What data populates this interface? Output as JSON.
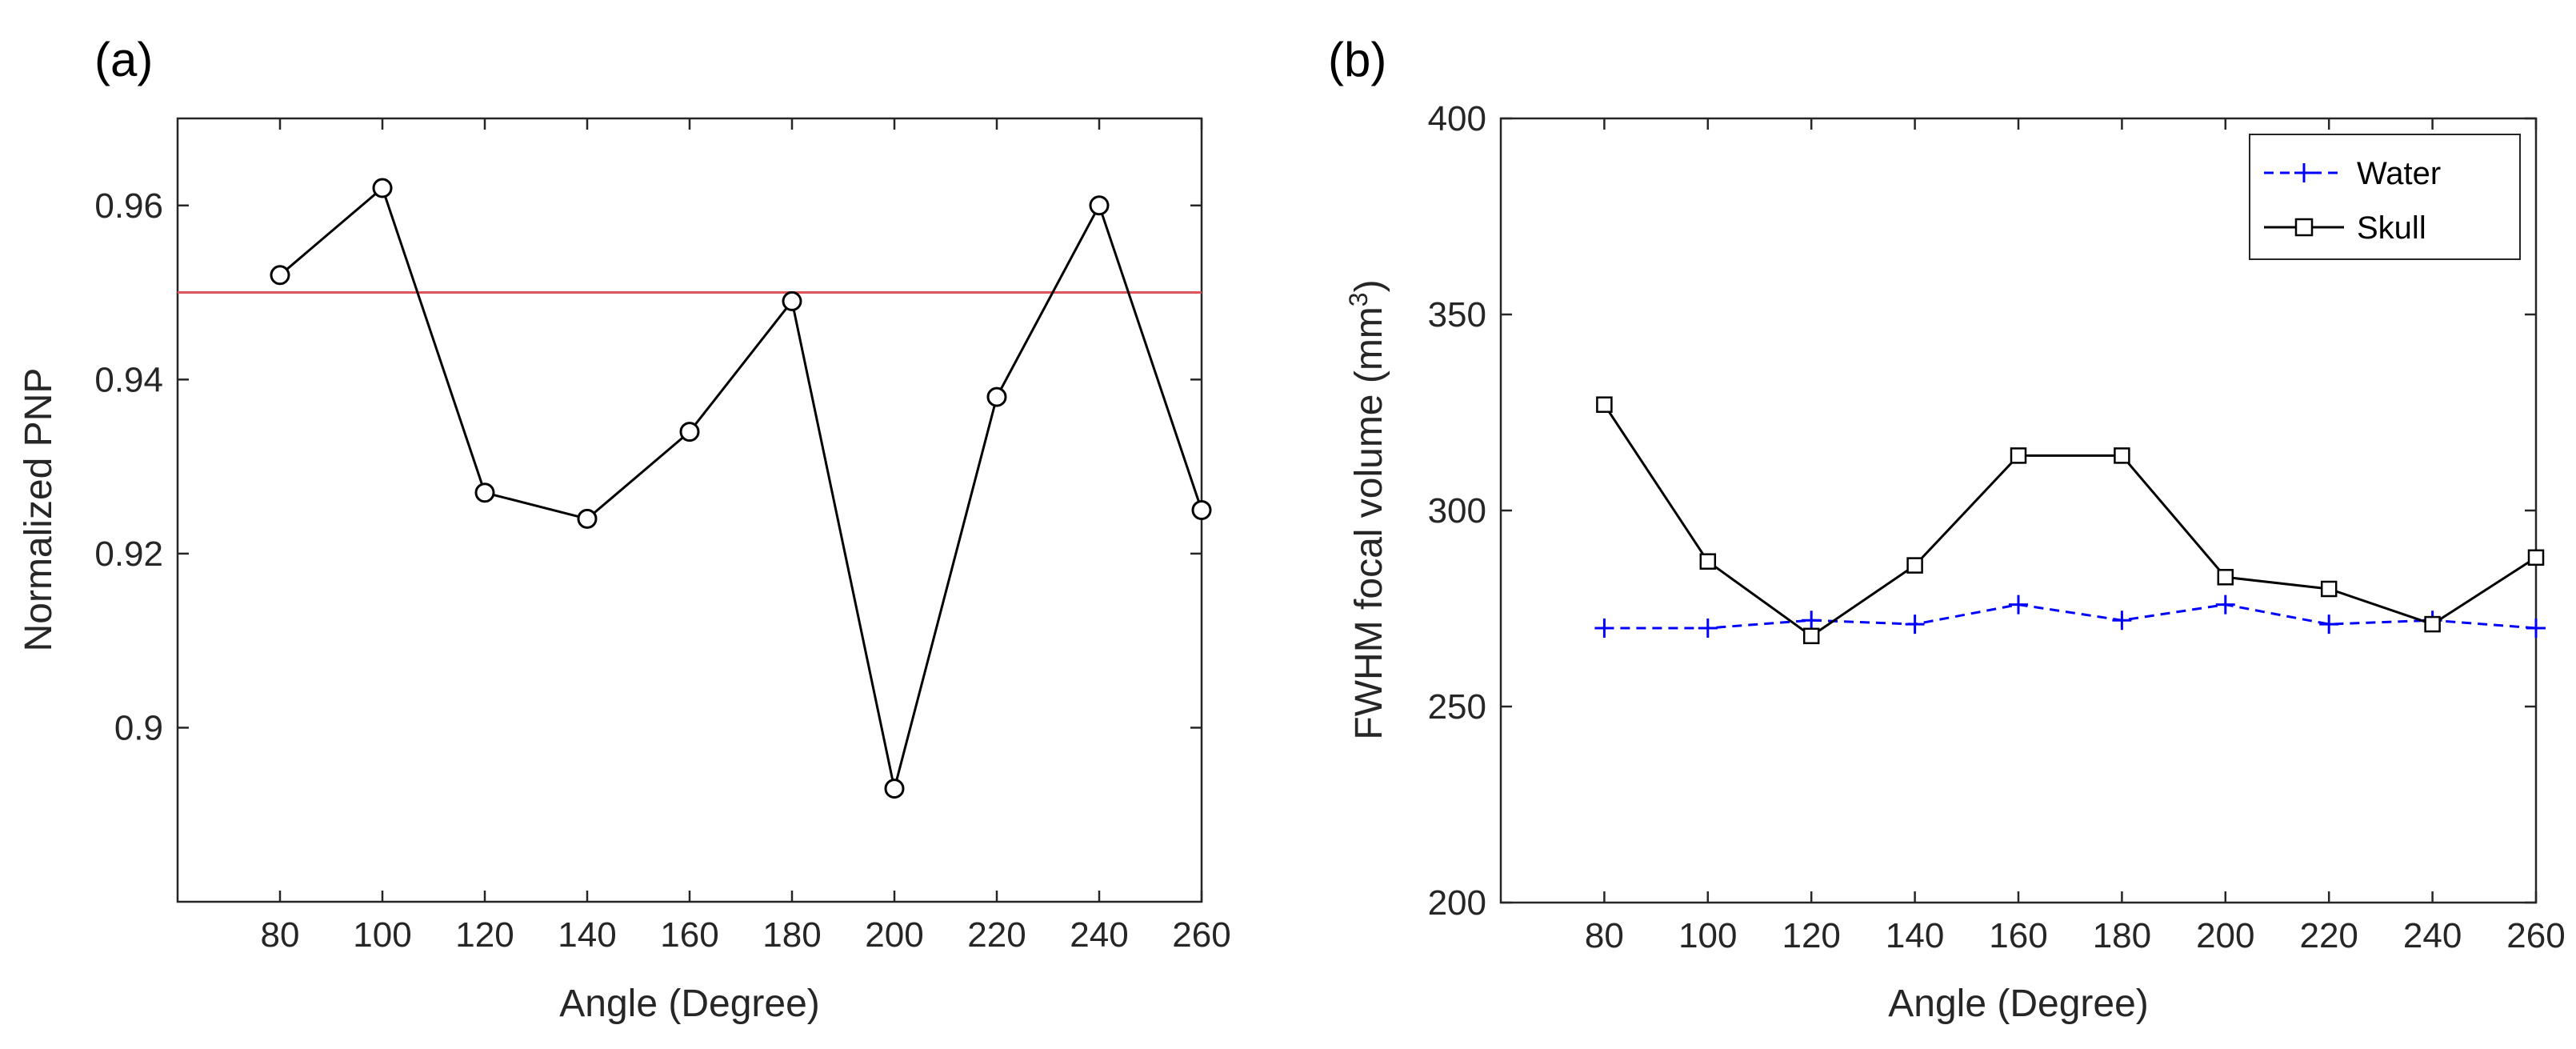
{
  "chart_data": [
    {
      "type": "line",
      "panel_label": "(a)",
      "xlabel": "Angle (Degree)",
      "ylabel": "Normalized PNP",
      "x": [
        80,
        100,
        120,
        140,
        160,
        180,
        200,
        220,
        240,
        260
      ],
      "xlim": [
        60,
        260
      ],
      "ylim": [
        0.88,
        0.97
      ],
      "xticks": [
        80,
        100,
        120,
        140,
        160,
        180,
        200,
        220,
        240,
        260
      ],
      "yticks": [
        0.9,
        0.92,
        0.94,
        0.96
      ],
      "ytick_labels": [
        "0.9",
        "0.92",
        "0.94",
        "0.96"
      ],
      "grid": false,
      "series": [
        {
          "values": [
            0.952,
            0.962,
            0.927,
            0.924,
            0.934,
            0.949,
            0.893,
            0.938,
            0.96,
            0.925
          ],
          "color": "#000000",
          "marker": "circle",
          "line": "solid"
        }
      ],
      "reference_line": {
        "y": 0.95,
        "color": "#e0555a"
      }
    },
    {
      "type": "line",
      "panel_label": "(b)",
      "xlabel": "Angle (Degree)",
      "ylabel": "FWHM focal volume (mm",
      "ylabel_sup": "3",
      "ylabel_end": ")",
      "x": [
        80,
        100,
        120,
        140,
        160,
        180,
        200,
        220,
        240,
        260
      ],
      "xlim": [
        60,
        260
      ],
      "ylim": [
        200,
        400
      ],
      "xticks": [
        80,
        100,
        120,
        140,
        160,
        180,
        200,
        220,
        240,
        260
      ],
      "yticks": [
        200,
        250,
        300,
        350,
        400
      ],
      "ytick_labels": [
        "200",
        "250",
        "300",
        "350",
        "400"
      ],
      "grid": false,
      "legend_position": "top-right",
      "series": [
        {
          "name": "Water",
          "values": [
            270,
            270,
            272,
            271,
            276,
            272,
            276,
            271,
            272,
            270
          ],
          "color": "#0000ff",
          "marker": "plus",
          "line": "dashed"
        },
        {
          "name": "Skull",
          "values": [
            327,
            287,
            268,
            286,
            314,
            314,
            283,
            280,
            271,
            288
          ],
          "color": "#000000",
          "marker": "square",
          "line": "solid"
        }
      ]
    }
  ]
}
